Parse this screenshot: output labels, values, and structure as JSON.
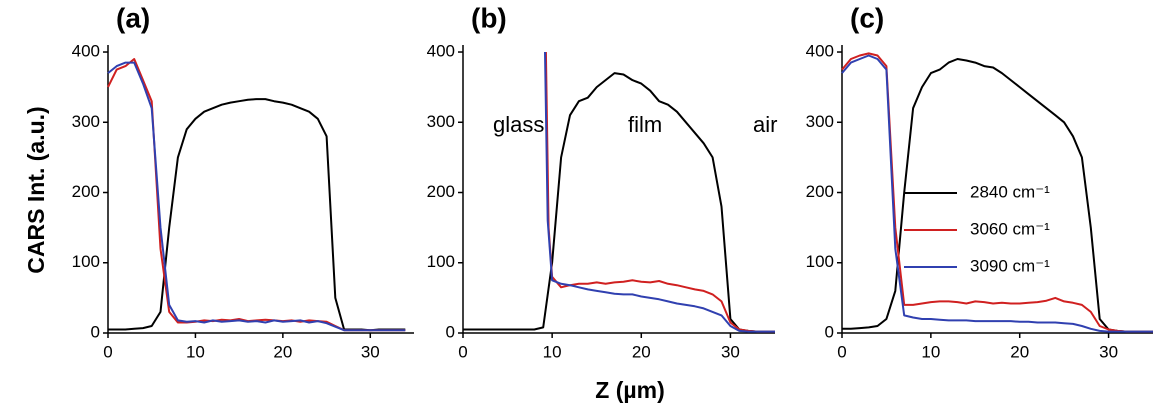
{
  "axis_labels": {
    "x": "Z (µm)",
    "y": "CARS Int. (a.u.)"
  },
  "chart_data": [
    {
      "type": "line",
      "title": "(a)",
      "xlim": [
        0,
        35
      ],
      "ylim": [
        0,
        410
      ],
      "xticks": [
        0,
        10,
        20,
        30
      ],
      "yticks": [
        0,
        100,
        200,
        300,
        400
      ],
      "legend": false,
      "series": [
        {
          "name": "2840 cm⁻¹",
          "color": "#000000",
          "x": [
            0,
            1,
            2,
            3,
            4,
            5,
            6,
            7,
            8,
            9,
            10,
            11,
            12,
            13,
            14,
            15,
            16,
            17,
            18,
            19,
            20,
            21,
            22,
            23,
            24,
            25,
            26,
            27,
            28,
            29,
            30,
            31,
            32,
            33,
            34
          ],
          "values": [
            5,
            5,
            5,
            6,
            7,
            10,
            30,
            150,
            250,
            290,
            305,
            315,
            320,
            325,
            328,
            330,
            332,
            333,
            333,
            330,
            328,
            325,
            320,
            315,
            305,
            280,
            50,
            5,
            5,
            5,
            4,
            5,
            5,
            5,
            5
          ]
        },
        {
          "name": "3060 cm⁻¹",
          "color": "#d02020",
          "x": [
            0,
            1,
            2,
            3,
            4,
            5,
            6,
            7,
            8,
            9,
            10,
            11,
            12,
            13,
            14,
            15,
            16,
            17,
            18,
            19,
            20,
            21,
            22,
            23,
            24,
            25,
            26,
            27,
            28,
            29,
            30,
            31,
            32,
            33,
            34
          ],
          "values": [
            350,
            375,
            380,
            390,
            360,
            330,
            120,
            30,
            15,
            15,
            16,
            18,
            17,
            19,
            18,
            20,
            17,
            18,
            19,
            18,
            17,
            18,
            16,
            18,
            17,
            16,
            10,
            4,
            4,
            4,
            4,
            4,
            4,
            4,
            4
          ]
        },
        {
          "name": "3090 cm⁻¹",
          "color": "#3040b0",
          "x": [
            0,
            1,
            2,
            3,
            4,
            5,
            6,
            7,
            8,
            9,
            10,
            11,
            12,
            13,
            14,
            15,
            16,
            17,
            18,
            19,
            20,
            21,
            22,
            23,
            24,
            25,
            26,
            27,
            28,
            29,
            30,
            31,
            32,
            33,
            34
          ],
          "values": [
            370,
            380,
            385,
            385,
            355,
            320,
            150,
            40,
            18,
            16,
            17,
            15,
            18,
            16,
            17,
            18,
            16,
            17,
            15,
            18,
            16,
            17,
            18,
            15,
            17,
            14,
            9,
            4,
            4,
            4,
            4,
            4,
            4,
            4,
            4
          ]
        }
      ]
    },
    {
      "type": "line",
      "title": "(b)",
      "xlim": [
        0,
        35
      ],
      "ylim": [
        0,
        410
      ],
      "xticks": [
        0,
        10,
        20,
        30
      ],
      "yticks": [
        0,
        100,
        200,
        300,
        400
      ],
      "legend": false,
      "annotations": [
        "glass",
        "film",
        "air"
      ],
      "series": [
        {
          "name": "2840 cm⁻¹",
          "color": "#000000",
          "x": [
            0,
            1,
            2,
            3,
            4,
            5,
            6,
            7,
            8,
            9,
            10,
            11,
            12,
            13,
            14,
            15,
            16,
            17,
            18,
            19,
            20,
            21,
            22,
            23,
            24,
            25,
            26,
            27,
            28,
            29,
            30,
            31,
            32,
            33,
            34,
            35
          ],
          "values": [
            5,
            5,
            5,
            5,
            5,
            5,
            5,
            5,
            5,
            8,
            100,
            250,
            310,
            330,
            335,
            350,
            360,
            370,
            368,
            360,
            355,
            345,
            330,
            325,
            315,
            300,
            285,
            270,
            250,
            180,
            20,
            5,
            3,
            2,
            2,
            2
          ]
        },
        {
          "name": "3060 cm⁻¹",
          "color": "#d02020",
          "x": [
            9.3,
            9.6,
            10,
            11,
            12,
            13,
            14,
            15,
            16,
            17,
            18,
            19,
            20,
            21,
            22,
            23,
            24,
            25,
            26,
            27,
            28,
            29,
            30,
            31,
            32,
            33,
            34,
            35
          ],
          "values": [
            400,
            150,
            80,
            65,
            68,
            70,
            70,
            72,
            70,
            72,
            73,
            75,
            73,
            72,
            74,
            70,
            68,
            65,
            62,
            60,
            55,
            45,
            15,
            5,
            3,
            2,
            2,
            2
          ]
        },
        {
          "name": "3090 cm⁻¹",
          "color": "#3040b0",
          "x": [
            9.2,
            9.5,
            10,
            11,
            12,
            13,
            14,
            15,
            16,
            17,
            18,
            19,
            20,
            21,
            22,
            23,
            24,
            25,
            26,
            27,
            28,
            29,
            30,
            31,
            32,
            33,
            34,
            35
          ],
          "values": [
            400,
            160,
            75,
            70,
            68,
            65,
            62,
            60,
            58,
            56,
            55,
            55,
            52,
            50,
            48,
            45,
            42,
            40,
            38,
            35,
            30,
            25,
            10,
            3,
            2,
            2,
            2,
            2
          ]
        }
      ]
    },
    {
      "type": "line",
      "title": "(c)",
      "xlim": [
        0,
        35
      ],
      "ylim": [
        0,
        410
      ],
      "xticks": [
        0,
        10,
        20,
        30
      ],
      "yticks": [
        0,
        100,
        200,
        300,
        400
      ],
      "legend": true,
      "series": [
        {
          "name": "2840 cm⁻¹",
          "color": "#000000",
          "x": [
            0,
            1,
            2,
            3,
            4,
            5,
            6,
            7,
            8,
            9,
            10,
            11,
            12,
            13,
            14,
            15,
            16,
            17,
            18,
            19,
            20,
            21,
            22,
            23,
            24,
            25,
            26,
            27,
            28,
            29,
            30,
            31,
            32,
            33,
            34,
            35
          ],
          "values": [
            6,
            6,
            7,
            8,
            10,
            20,
            60,
            200,
            320,
            350,
            370,
            375,
            385,
            390,
            388,
            385,
            380,
            378,
            370,
            360,
            350,
            340,
            330,
            320,
            310,
            300,
            280,
            250,
            150,
            20,
            5,
            3,
            2,
            2,
            2,
            2
          ]
        },
        {
          "name": "3060 cm⁻¹",
          "color": "#d02020",
          "x": [
            0,
            1,
            2,
            3,
            4,
            5,
            6,
            7,
            8,
            9,
            10,
            11,
            12,
            13,
            14,
            15,
            16,
            17,
            18,
            19,
            20,
            21,
            22,
            23,
            24,
            25,
            26,
            27,
            28,
            29,
            30,
            31,
            32,
            33,
            34,
            35
          ],
          "values": [
            375,
            390,
            395,
            398,
            395,
            380,
            150,
            40,
            40,
            42,
            44,
            45,
            45,
            44,
            42,
            45,
            44,
            42,
            43,
            42,
            42,
            43,
            44,
            46,
            50,
            45,
            43,
            40,
            30,
            10,
            5,
            3,
            2,
            2,
            2,
            2
          ]
        },
        {
          "name": "3090 cm⁻¹",
          "color": "#3040b0",
          "x": [
            0,
            1,
            2,
            3,
            4,
            5,
            6,
            7,
            8,
            9,
            10,
            11,
            12,
            13,
            14,
            15,
            16,
            17,
            18,
            19,
            20,
            21,
            22,
            23,
            24,
            25,
            26,
            27,
            28,
            29,
            30,
            31,
            32,
            33,
            34,
            35
          ],
          "values": [
            370,
            385,
            390,
            395,
            390,
            375,
            120,
            25,
            22,
            20,
            20,
            19,
            18,
            18,
            18,
            17,
            17,
            17,
            17,
            17,
            16,
            16,
            15,
            15,
            15,
            14,
            13,
            10,
            6,
            3,
            2,
            2,
            2,
            2,
            2,
            2
          ]
        }
      ]
    }
  ]
}
